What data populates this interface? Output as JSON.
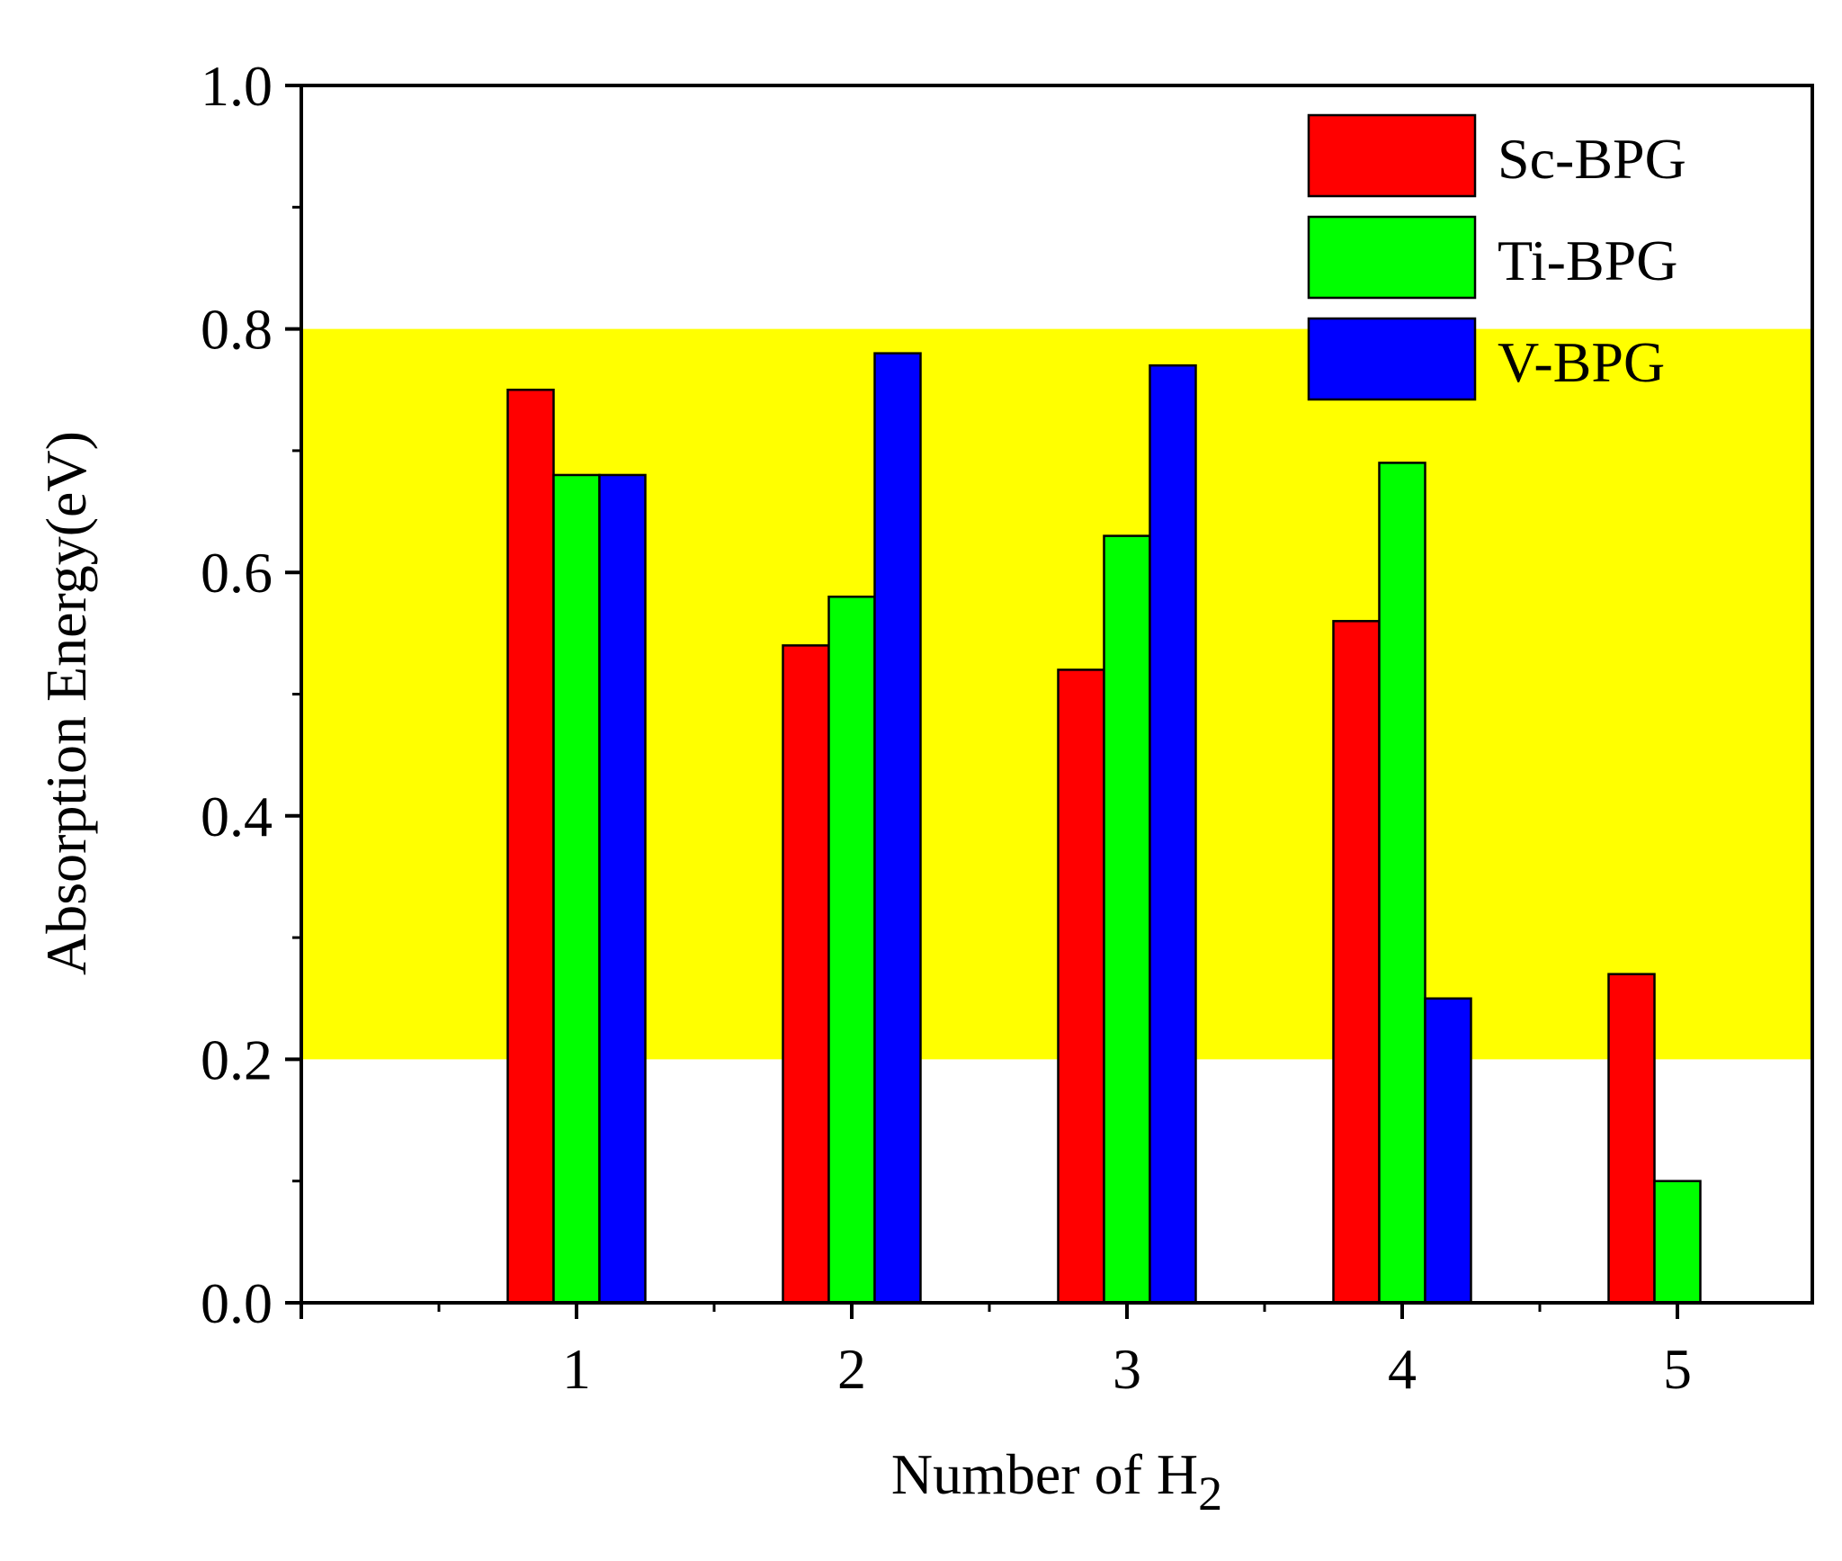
{
  "chart_data": {
    "type": "bar",
    "xlabel": "Number of H",
    "xlabel_subscript": "2",
    "ylabel": "Absorption Energy(eV)",
    "categories": [
      "1",
      "2",
      "3",
      "4",
      "5"
    ],
    "ylim": [
      0.0,
      1.0
    ],
    "yticks": [
      "0.0",
      "0.2",
      "0.4",
      "0.6",
      "0.8",
      "1.0"
    ],
    "grid": false,
    "legend_position": "top-right",
    "highlight_band": {
      "from": 0.2,
      "to": 0.8,
      "color": "#ffff00"
    },
    "series": [
      {
        "name": "Sc-BPG",
        "color": "#ff0000",
        "values": [
          0.75,
          0.54,
          0.52,
          0.56,
          0.27
        ]
      },
      {
        "name": "Ti-BPG",
        "color": "#00ff00",
        "values": [
          0.68,
          0.58,
          0.63,
          0.69,
          0.1
        ]
      },
      {
        "name": "V-BPG",
        "color": "#0000ff",
        "values": [
          0.68,
          0.78,
          0.77,
          0.25,
          null
        ]
      }
    ]
  }
}
